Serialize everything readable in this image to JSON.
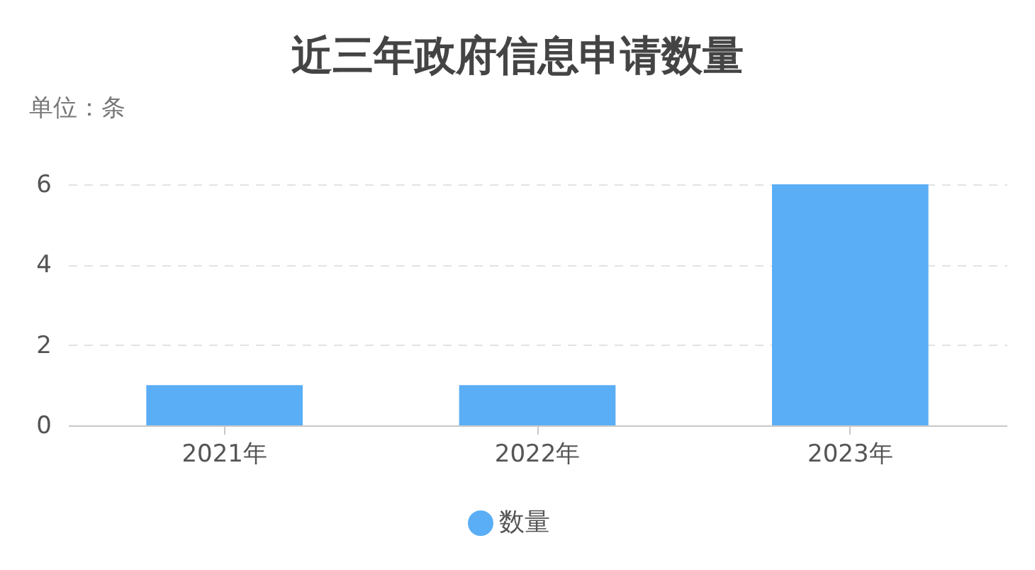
{
  "chart_data": {
    "type": "bar",
    "title": "近三年政府信息申请数量",
    "ylabel": "单位：条",
    "categories": [
      "2021年",
      "2022年",
      "2023年"
    ],
    "series": [
      {
        "name": "数量",
        "color": "#5aaef5",
        "values": [
          1,
          1,
          6
        ]
      }
    ],
    "ylim": [
      0,
      6
    ],
    "yticks": [
      0,
      2,
      4,
      6
    ],
    "grid": "y",
    "legend": "bottom"
  }
}
